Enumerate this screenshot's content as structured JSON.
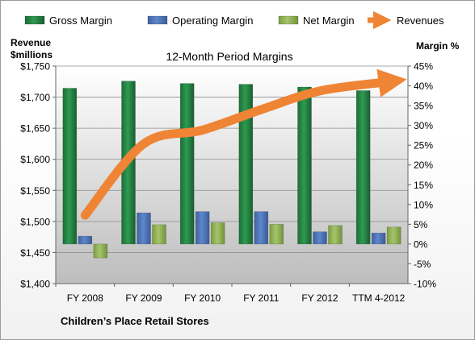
{
  "chart_data": {
    "type": "bar",
    "title": "12-Month Period Margins",
    "footer": "Children’s Place Retail Stores",
    "categories": [
      "FY 2008",
      "FY 2009",
      "FY 2010",
      "FY 2011",
      "FY 2012",
      "TTM 4-2012"
    ],
    "left_axis": {
      "label_line1": "Revenue",
      "label_line2": "$millions",
      "ylim": [
        1400,
        1750
      ],
      "tick_labels": [
        "$1,750",
        "$1,700",
        "$1,650",
        "$1,600",
        "$1,550",
        "$1,500",
        "$1,450",
        "$1,400"
      ],
      "tick_values": [
        1750,
        1700,
        1650,
        1600,
        1550,
        1500,
        1450,
        1400
      ]
    },
    "right_axis": {
      "label": "Margin %",
      "ylim": [
        -10,
        45
      ],
      "tick_labels": [
        "45%",
        "40%",
        "35%",
        "30%",
        "25%",
        "20%",
        "15%",
        "10%",
        "5%",
        "0%",
        "-5%",
        "-10%"
      ],
      "tick_values": [
        45,
        40,
        35,
        30,
        25,
        20,
        15,
        10,
        5,
        0,
        -5,
        -10
      ]
    },
    "series": [
      {
        "name": "Gross Margin",
        "type": "bar",
        "axis": "right",
        "color": "#1e7a3c",
        "values": [
          39.4,
          41.2,
          40.6,
          40.4,
          39.7,
          38.8
        ]
      },
      {
        "name": "Operating Margin",
        "type": "bar",
        "axis": "right",
        "color": "#4a6fb0",
        "values": [
          2.0,
          7.9,
          8.2,
          8.2,
          3.1,
          2.8
        ]
      },
      {
        "name": "Net Margin",
        "type": "bar",
        "axis": "right",
        "color": "#86a84a",
        "values": [
          -3.5,
          4.9,
          5.4,
          5.0,
          4.7,
          4.3
        ]
      },
      {
        "name": "Revenues",
        "type": "line",
        "axis": "left",
        "color": "#ee8434",
        "values": [
          1510,
          1625,
          1647,
          1680,
          1710,
          1725
        ]
      }
    ],
    "grid": true,
    "legend_position": "top"
  }
}
